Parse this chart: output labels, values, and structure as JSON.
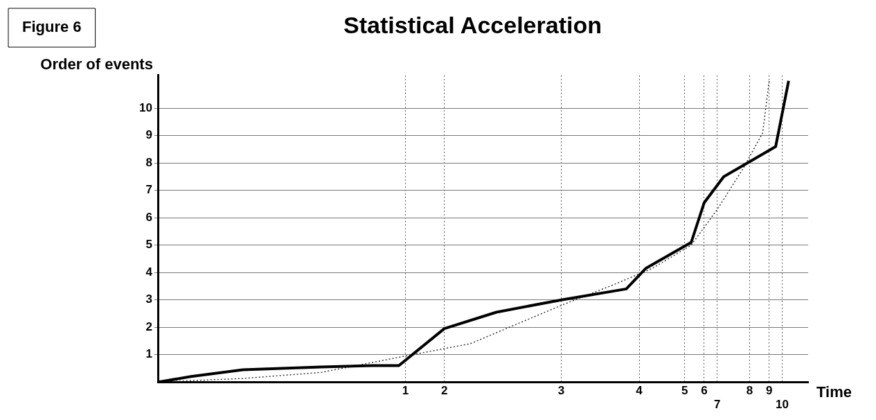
{
  "chart_data": {
    "type": "line",
    "title": "Statistical Acceleration",
    "xlabel": "Time",
    "ylabel": "Order of events",
    "annotations": [
      "Figure 6"
    ],
    "categories": [
      null,
      null,
      null,
      null,
      null,
      null,
      null,
      null,
      null,
      null,
      null,
      null,
      null,
      null,
      null,
      null,
      null,
      null,
      null,
      null,
      null,
      null,
      null,
      null,
      null,
      null,
      null,
      null,
      null,
      null,
      null,
      null,
      null,
      null,
      null,
      null,
      null,
      null,
      "1",
      null,
      null,
      null,
      null,
      null,
      "2",
      null,
      null,
      null,
      null,
      null,
      null,
      null,
      null,
      null,
      null,
      null,
      null,
      null,
      null,
      null,
      null,
      null,
      "3",
      null,
      null,
      null,
      null,
      null,
      null,
      null,
      null,
      null,
      null,
      null,
      "4",
      null,
      null,
      null,
      null,
      null,
      null,
      "5",
      null,
      null,
      "6",
      null,
      "7",
      null,
      null,
      null,
      null,
      "8",
      null,
      null,
      "9",
      null,
      "10",
      null,
      null,
      null,
      null
    ],
    "ylim": [
      0,
      11.2
    ],
    "yticks": [
      1,
      2,
      3,
      4,
      5,
      6,
      7,
      8,
      9,
      10
    ],
    "grid": true,
    "marker": "none",
    "series": [
      {
        "color": "#000000",
        "values": [
          0,
          null,
          null,
          null,
          null,
          0.2,
          null,
          null,
          null,
          null,
          null,
          null,
          null,
          0.45,
          null,
          null,
          null,
          null,
          null,
          null,
          null,
          null,
          null,
          null,
          null,
          0.55,
          null,
          null,
          null,
          null,
          null,
          null,
          null,
          0.6,
          null,
          null,
          null,
          0.6,
          null,
          null,
          null,
          null,
          null,
          null,
          1.95,
          null,
          null,
          null,
          null,
          null,
          null,
          null,
          2.55,
          null,
          null,
          null,
          null,
          null,
          null,
          null,
          null,
          null,
          3.0,
          null,
          null,
          null,
          null,
          null,
          null,
          null,
          null,
          null,
          3.4,
          null,
          null,
          4.15,
          null,
          null,
          null,
          null,
          null,
          null,
          5.1,
          null,
          6.55,
          null,
          null,
          7.5,
          null,
          null,
          null,
          8.05,
          null,
          null,
          null,
          8.6,
          null,
          11.0,
          null,
          null,
          null
        ]
      },
      {
        "color": "#333333",
        "line_style": "dotted",
        "values": [
          0,
          null,
          null,
          null,
          null,
          null,
          null,
          null,
          null,
          null,
          null,
          null,
          null,
          0.13,
          null,
          null,
          null,
          null,
          null,
          null,
          null,
          null,
          null,
          null,
          null,
          0.35,
          null,
          null,
          null,
          null,
          null,
          null,
          null,
          null,
          null,
          null,
          null,
          null,
          0.95,
          null,
          null,
          null,
          null,
          null,
          null,
          null,
          null,
          null,
          1.4,
          null,
          null,
          null,
          null,
          null,
          null,
          null,
          null,
          null,
          null,
          null,
          null,
          null,
          2.8,
          null,
          null,
          null,
          null,
          null,
          null,
          null,
          3.55,
          null,
          null,
          null,
          null,
          null,
          4.15,
          null,
          null,
          null,
          null,
          null,
          5.0,
          null,
          null,
          null,
          6.3,
          null,
          null,
          null,
          7.8,
          null,
          null,
          9.1,
          11.0,
          null,
          null,
          null,
          null,
          null,
          null
        ]
      }
    ]
  }
}
